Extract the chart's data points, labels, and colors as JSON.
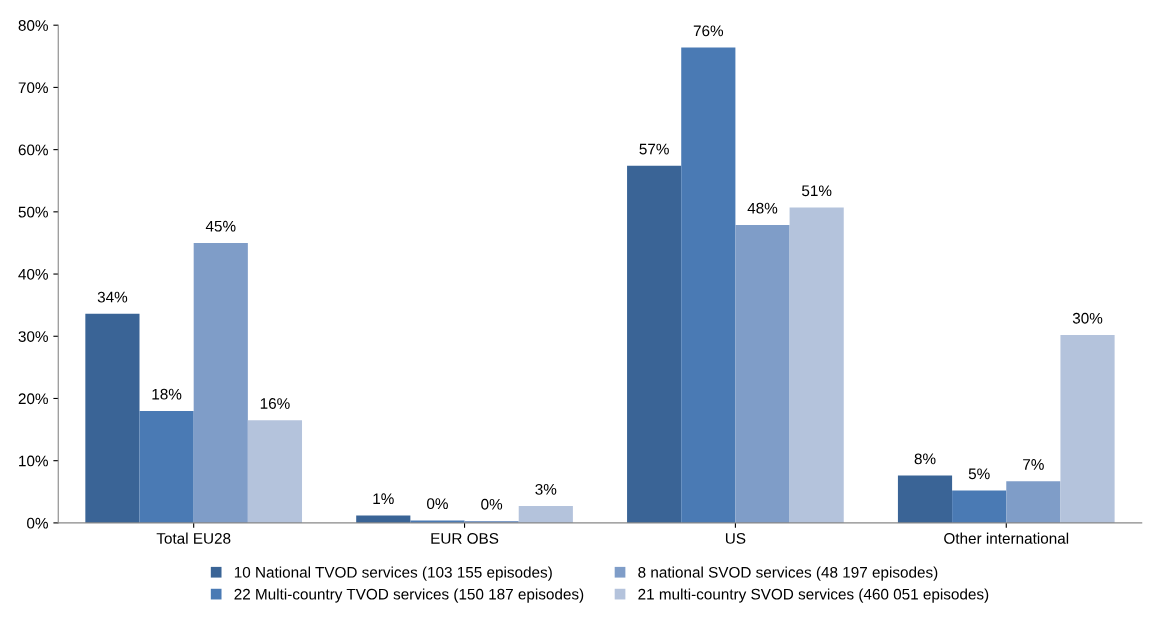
{
  "chart_data": {
    "type": "bar",
    "categories": [
      "Total EU28",
      "EUR OBS",
      "US",
      "Other international"
    ],
    "series": [
      {
        "name": "10 National TVOD services (103 155 episodes)",
        "color": "#3a6496",
        "values": [
          33.6,
          1.2,
          57.4,
          7.6
        ],
        "value_labels": [
          "34%",
          "1%",
          "57%",
          "8%"
        ]
      },
      {
        "name": "22 Multi-country TVOD services (150 187 episodes)",
        "color": "#4a7ab4",
        "values": [
          18,
          0.4,
          76.4,
          5.2
        ],
        "value_labels": [
          "18%",
          "0%",
          "76%",
          "5%"
        ]
      },
      {
        "name": "8 national SVOD services (48 197 episodes)",
        "color": "#7f9dc8",
        "values": [
          45,
          0.3,
          47.9,
          6.7
        ],
        "value_labels": [
          "45%",
          "0%",
          "48%",
          "7%"
        ]
      },
      {
        "name": "21 multi-country SVOD services (460 051 episodes)",
        "color": "#b4c3dc",
        "values": [
          16.5,
          2.7,
          50.7,
          30.2
        ],
        "value_labels": [
          "16%",
          "3%",
          "51%",
          "30%"
        ]
      }
    ],
    "ylim": [
      0,
      80
    ],
    "yticks": [
      {
        "value": 0,
        "label": "0%"
      },
      {
        "value": 10,
        "label": "10%"
      },
      {
        "value": 20,
        "label": "20%"
      },
      {
        "value": 30,
        "label": "30%"
      },
      {
        "value": 40,
        "label": "40%"
      },
      {
        "value": 50,
        "label": "50%"
      },
      {
        "value": 60,
        "label": "60%"
      },
      {
        "value": 70,
        "label": "70%"
      },
      {
        "value": 80,
        "label": "80%"
      }
    ],
    "grid": false,
    "legend": "bottom"
  }
}
